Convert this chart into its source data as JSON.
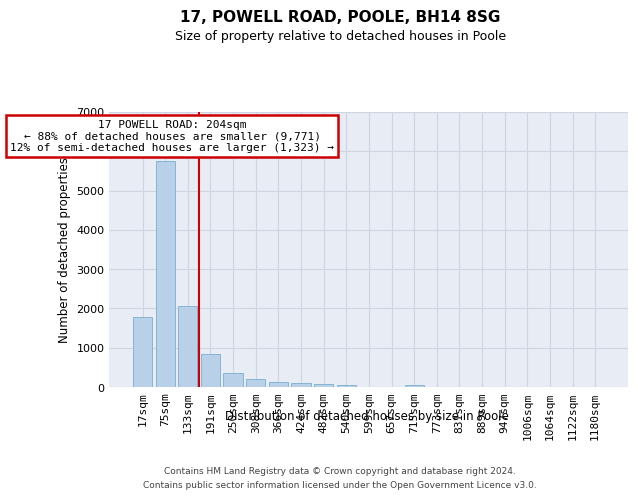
{
  "title": "17, POWELL ROAD, POOLE, BH14 8SG",
  "subtitle": "Size of property relative to detached houses in Poole",
  "xlabel": "Distribution of detached houses by size in Poole",
  "ylabel": "Number of detached properties",
  "bar_color": "#b8d0e8",
  "bar_edge_color": "#7aaed0",
  "vline_color": "#cc0000",
  "vline_index": 3,
  "annotation_text": "17 POWELL ROAD: 204sqm\n← 88% of detached houses are smaller (9,771)\n12% of semi-detached houses are larger (1,323) →",
  "annotation_box_facecolor": "#ffffff",
  "annotation_box_edgecolor": "#cc0000",
  "categories": [
    "17sqm",
    "75sqm",
    "133sqm",
    "191sqm",
    "250sqm",
    "308sqm",
    "366sqm",
    "424sqm",
    "482sqm",
    "540sqm",
    "599sqm",
    "657sqm",
    "715sqm",
    "773sqm",
    "831sqm",
    "889sqm",
    "947sqm",
    "1006sqm",
    "1064sqm",
    "1122sqm",
    "1180sqm"
  ],
  "values": [
    1790,
    5750,
    2060,
    830,
    365,
    215,
    125,
    90,
    80,
    55,
    0,
    0,
    55,
    0,
    0,
    0,
    0,
    0,
    0,
    0,
    0
  ],
  "ylim": [
    0,
    7000
  ],
  "yticks": [
    0,
    1000,
    2000,
    3000,
    4000,
    5000,
    6000,
    7000
  ],
  "grid_color": "#cdd5e2",
  "plot_bg_color": "#e8ecf5",
  "footer1": "Contains HM Land Registry data © Crown copyright and database right 2024.",
  "footer2": "Contains public sector information licensed under the Open Government Licence v3.0."
}
